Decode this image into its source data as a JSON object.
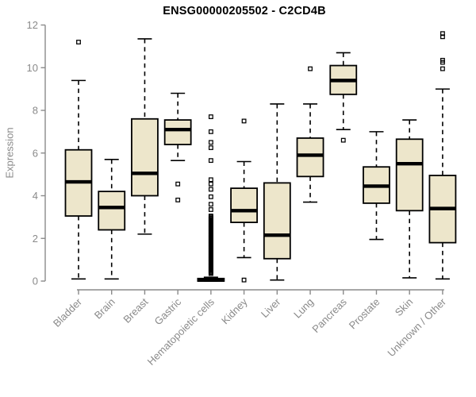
{
  "colors": {
    "box_fill": "#EDE6CB",
    "box_stroke": "#000000",
    "axis": "#8a8a8a",
    "title": "#000000",
    "background": "#ffffff"
  },
  "chart_data": {
    "type": "boxplot",
    "title": "ENSG00000205502 - C2CD4B",
    "ylabel": "Expression",
    "xlabel": "",
    "ylim": [
      0,
      12
    ],
    "yticks": [
      0,
      2,
      4,
      6,
      8,
      10,
      12
    ],
    "grid": false,
    "legend": false,
    "categories": [
      "Bladder",
      "Brain",
      "Breast",
      "Gastric",
      "Hematopoietic cells",
      "Kidney",
      "Liver",
      "Lung",
      "Pancreas",
      "Prostate",
      "Skin",
      "Unknown / Other"
    ],
    "series": [
      {
        "category": "Bladder",
        "low": 0.1,
        "q1": 3.05,
        "median": 4.65,
        "q3": 6.15,
        "high": 9.4,
        "outliers": [
          11.2
        ]
      },
      {
        "category": "Brain",
        "low": 0.1,
        "q1": 2.4,
        "median": 3.45,
        "q3": 4.2,
        "high": 5.7,
        "outliers": []
      },
      {
        "category": "Breast",
        "low": 2.2,
        "q1": 4.0,
        "median": 5.05,
        "q3": 7.6,
        "high": 11.35,
        "outliers": []
      },
      {
        "category": "Gastric",
        "low": 5.65,
        "q1": 6.4,
        "median": 7.1,
        "q3": 7.55,
        "high": 8.8,
        "outliers": [
          4.55,
          3.8
        ]
      },
      {
        "category": "Hematopoietic cells",
        "low": 0,
        "q1": 0,
        "median": 0.05,
        "q3": 0.12,
        "high": 0.18,
        "outliers": [
          0.35,
          0.4,
          0.45,
          0.5,
          0.55,
          0.6,
          0.65,
          0.7,
          0.75,
          0.8,
          0.85,
          0.9,
          0.95,
          1.0,
          1.05,
          1.1,
          1.15,
          1.2,
          1.25,
          1.3,
          1.35,
          1.4,
          1.45,
          1.5,
          1.55,
          1.6,
          1.65,
          1.7,
          1.75,
          1.8,
          1.85,
          1.9,
          1.95,
          2.0,
          2.05,
          2.1,
          2.15,
          2.2,
          2.25,
          2.3,
          2.35,
          2.4,
          2.45,
          2.5,
          2.55,
          2.6,
          2.65,
          2.7,
          2.75,
          2.8,
          2.85,
          2.9,
          2.95,
          3.0,
          3.05,
          3.35,
          3.6,
          3.95,
          4.3,
          4.55,
          4.75,
          5.65,
          6.25,
          6.5,
          7.0,
          7.7
        ]
      },
      {
        "category": "Kidney",
        "low": 1.1,
        "q1": 2.75,
        "median": 3.3,
        "q3": 4.35,
        "high": 5.6,
        "outliers": [
          7.5,
          0.05
        ]
      },
      {
        "category": "Liver",
        "low": 0.05,
        "q1": 1.05,
        "median": 2.15,
        "q3": 4.6,
        "high": 8.3,
        "outliers": []
      },
      {
        "category": "Lung",
        "low": 3.7,
        "q1": 4.9,
        "median": 5.9,
        "q3": 6.7,
        "high": 8.3,
        "outliers": [
          9.95
        ]
      },
      {
        "category": "Pancreas",
        "low": 7.1,
        "q1": 8.75,
        "median": 9.4,
        "q3": 10.1,
        "high": 10.7,
        "outliers": [
          6.6
        ]
      },
      {
        "category": "Prostate",
        "low": 1.95,
        "q1": 3.65,
        "median": 4.45,
        "q3": 5.35,
        "high": 7.0,
        "outliers": []
      },
      {
        "category": "Skin",
        "low": 0.15,
        "q1": 3.3,
        "median": 5.5,
        "q3": 6.65,
        "high": 7.55,
        "outliers": []
      },
      {
        "category": "Unknown / Other",
        "low": 0.1,
        "q1": 1.8,
        "median": 3.4,
        "q3": 4.95,
        "high": 9.0,
        "outliers": [
          11.6,
          11.45,
          10.35,
          10.25,
          9.95
        ]
      }
    ]
  }
}
